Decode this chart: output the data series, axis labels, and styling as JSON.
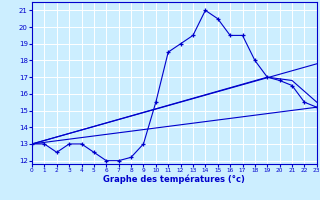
{
  "xlabel": "Graphe des températures (°c)",
  "bg_color": "#cceeff",
  "line_color": "#0000cc",
  "grid_color": "#ffffff",
  "xlim": [
    0,
    23
  ],
  "ylim": [
    11.8,
    21.5
  ],
  "xticks": [
    0,
    1,
    2,
    3,
    4,
    5,
    6,
    7,
    8,
    9,
    10,
    11,
    12,
    13,
    14,
    15,
    16,
    17,
    18,
    19,
    20,
    21,
    22,
    23
  ],
  "yticks": [
    12,
    13,
    14,
    15,
    16,
    17,
    18,
    19,
    20,
    21
  ],
  "series": {
    "temp_instant": {
      "x": [
        0,
        1,
        2,
        3,
        4,
        5,
        6,
        7,
        8,
        9,
        10,
        11,
        12,
        13,
        14,
        15,
        16,
        17,
        18,
        19,
        20,
        21,
        22,
        23
      ],
      "y": [
        13.0,
        13.0,
        12.5,
        13.0,
        13.0,
        12.5,
        12.0,
        12.0,
        12.2,
        13.0,
        15.5,
        18.5,
        19.0,
        19.5,
        21.0,
        20.5,
        19.5,
        19.5,
        18.0,
        17.0,
        16.8,
        16.5,
        15.5,
        15.2
      ]
    },
    "line1": {
      "x": [
        0,
        23
      ],
      "y": [
        13.0,
        15.2
      ]
    },
    "line2": {
      "x": [
        0,
        23
      ],
      "y": [
        13.0,
        17.8
      ]
    },
    "line3": {
      "x": [
        0,
        19,
        21,
        23
      ],
      "y": [
        13.0,
        17.0,
        16.8,
        15.5
      ]
    }
  }
}
